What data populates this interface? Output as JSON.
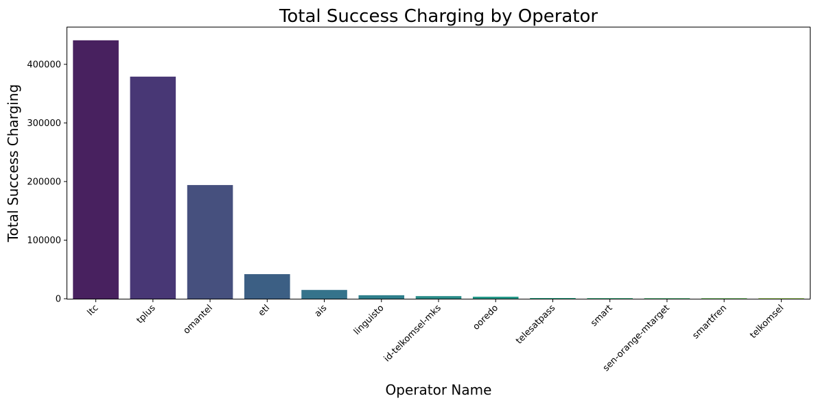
{
  "chart_data": {
    "type": "bar",
    "title": "Total Success Charging by Operator",
    "xlabel": "Operator Name",
    "ylabel": "Total Success Charging",
    "categories": [
      "ltc",
      "tplus",
      "omantel",
      "etl",
      "ais",
      "linguisto",
      "id-telkomsel-mks",
      "ooredo",
      "telesatpass",
      "smart",
      "sen-orange-mtarget",
      "smartfren",
      "telkomsel"
    ],
    "values": [
      441000,
      379000,
      194000,
      42000,
      15000,
      6000,
      4500,
      3500,
      1200,
      1000,
      800,
      200,
      100
    ],
    "colors": [
      "#48215f",
      "#483775",
      "#46507e",
      "#3c5f84",
      "#35738b",
      "#2f7f8c",
      "#2b8c89",
      "#27998a",
      "#2aa381",
      "#35af7b",
      "#4db974",
      "#6fc561",
      "#98cf52"
    ],
    "yticks": [
      0,
      100000,
      200000,
      300000,
      400000
    ],
    "ylim": [
      0,
      463000
    ],
    "grid": false,
    "legend": "none"
  }
}
